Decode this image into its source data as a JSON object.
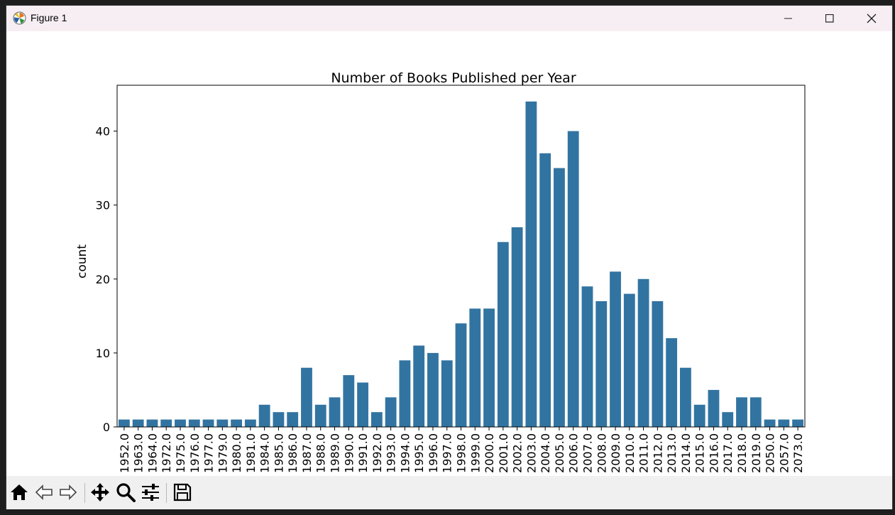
{
  "window": {
    "title": "Figure 1"
  },
  "icons": {
    "app": "matplotlib-icon",
    "minimize": "minimize-icon",
    "maximize": "maximize-icon",
    "close": "close-icon"
  },
  "toolbar": {
    "buttons": [
      "home-icon",
      "back-icon",
      "forward-icon",
      "pan-icon",
      "zoom-icon",
      "configure-subplots-icon",
      "save-icon"
    ]
  },
  "colors": {
    "bar": "#3274a1",
    "titlebar": "#f6eef2",
    "toolbar": "#f0f0f0"
  },
  "chart_data": {
    "type": "bar",
    "title": "Number of Books Published per Year",
    "xlabel": "",
    "ylabel": "count",
    "ylim": [
      0,
      46.2
    ],
    "yticks": [
      0,
      10,
      20,
      30,
      40
    ],
    "grid": false,
    "categories": [
      "1952.0",
      "1963.0",
      "1964.0",
      "1972.0",
      "1975.0",
      "1976.0",
      "1977.0",
      "1979.0",
      "1980.0",
      "1981.0",
      "1984.0",
      "1985.0",
      "1986.0",
      "1987.0",
      "1988.0",
      "1989.0",
      "1990.0",
      "1991.0",
      "1992.0",
      "1993.0",
      "1994.0",
      "1995.0",
      "1996.0",
      "1997.0",
      "1998.0",
      "1999.0",
      "2000.0",
      "2001.0",
      "2002.0",
      "2003.0",
      "2004.0",
      "2005.0",
      "2006.0",
      "2007.0",
      "2008.0",
      "2009.0",
      "2010.0",
      "2011.0",
      "2012.0",
      "2013.0",
      "2014.0",
      "2015.0",
      "2016.0",
      "2017.0",
      "2018.0",
      "2019.0",
      "2050.0",
      "2057.0",
      "2073.0"
    ],
    "values": [
      1,
      1,
      1,
      1,
      1,
      1,
      1,
      1,
      1,
      1,
      3,
      2,
      2,
      8,
      3,
      4,
      7,
      6,
      2,
      4,
      9,
      11,
      10,
      9,
      14,
      16,
      16,
      25,
      27,
      44,
      37,
      35,
      40,
      19,
      17,
      21,
      18,
      20,
      17,
      12,
      8,
      3,
      5,
      2,
      4,
      4,
      1,
      1,
      1
    ]
  }
}
